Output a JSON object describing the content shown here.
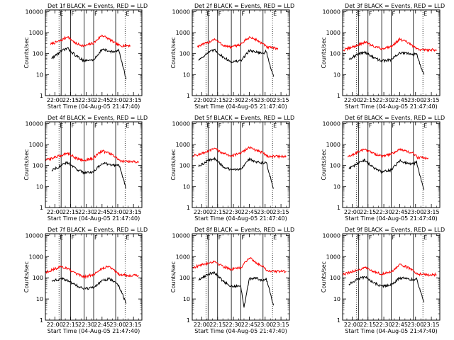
{
  "chart_data": [
    {
      "type": "line",
      "title": "Det 1f BLACK = Events, RED = LLD",
      "xlabel": "Start Time (04-Aug-05 21:47:40)",
      "ylabel": "Counts/sec",
      "yscale": "log",
      "ylim": [
        1,
        12000
      ],
      "xlim": [
        "21:51",
        "23:23"
      ],
      "x_ticks": [
        "22:00",
        "22:15",
        "22:30",
        "22:45",
        "23:00",
        "23:15"
      ],
      "y_ticks": [
        "1",
        "10",
        "100",
        "1000",
        "10000"
      ],
      "event_lines": [
        "22:06",
        "22:15",
        "22:28",
        "22:37",
        "22:58"
      ],
      "dotted_lines": [
        "22:04",
        "23:07"
      ],
      "markers": [
        "E",
        "F",
        "F",
        "E"
      ],
      "series": [
        {
          "color": "#ff0000",
          "x": [
            "21:56",
            "22:06",
            "22:12",
            "22:20",
            "22:28",
            "22:37",
            "22:45",
            "22:52",
            "22:58",
            "23:02",
            "23:10",
            "23:12"
          ],
          "values": [
            280,
            420,
            650,
            300,
            230,
            320,
            750,
            480,
            300,
            240,
            240,
            240
          ]
        },
        {
          "color": "#000000",
          "x": [
            "21:57",
            "22:06",
            "22:12",
            "22:20",
            "22:28",
            "22:37",
            "22:45",
            "22:52",
            "22:58",
            "23:01",
            "23:04",
            "23:08"
          ],
          "values": [
            60,
            130,
            180,
            80,
            45,
            50,
            160,
            130,
            120,
            150,
            40,
            6
          ]
        }
      ]
    },
    {
      "type": "line",
      "title": "Det 2f BLACK = Events, RED = LLD",
      "xlabel": "Start Time (04-Aug-05 21:47:40)",
      "ylabel": "Counts/sec",
      "yscale": "log",
      "ylim": [
        1,
        12000
      ],
      "xlim": [
        "21:51",
        "23:23"
      ],
      "x_ticks": [
        "22:00",
        "22:15",
        "22:30",
        "22:45",
        "23:00",
        "23:15"
      ],
      "y_ticks": [
        "1",
        "10",
        "100",
        "1000",
        "10000"
      ],
      "event_lines": [
        "22:06",
        "22:15",
        "22:28",
        "22:37",
        "22:58"
      ],
      "dotted_lines": [
        "22:04",
        "23:07"
      ],
      "markers": [
        "E",
        "F",
        "F",
        "E"
      ],
      "series": [
        {
          "color": "#ff0000",
          "x": [
            "21:56",
            "22:06",
            "22:12",
            "22:20",
            "22:28",
            "22:37",
            "22:45",
            "22:52",
            "22:58",
            "23:02",
            "23:10",
            "23:12"
          ],
          "values": [
            220,
            330,
            500,
            250,
            200,
            280,
            600,
            450,
            280,
            200,
            180,
            180
          ]
        },
        {
          "color": "#000000",
          "x": [
            "21:57",
            "22:06",
            "22:12",
            "22:20",
            "22:28",
            "22:37",
            "22:45",
            "22:52",
            "22:58",
            "23:01",
            "23:04",
            "23:08"
          ],
          "values": [
            50,
            110,
            150,
            70,
            40,
            45,
            140,
            120,
            100,
            130,
            35,
            8
          ]
        }
      ]
    },
    {
      "type": "line",
      "title": "Det 3f BLACK = Events, RED = LLD",
      "xlabel": "Start Time (04-Aug-05 21:47:40)",
      "ylabel": "Counts/sec",
      "yscale": "log",
      "ylim": [
        1,
        12000
      ],
      "xlim": [
        "21:51",
        "23:23"
      ],
      "x_ticks": [
        "22:00",
        "22:15",
        "22:30",
        "22:45",
        "23:00",
        "23:15"
      ],
      "y_ticks": [
        "1",
        "10",
        "100",
        "1000",
        "10000"
      ],
      "event_lines": [
        "22:06",
        "22:15",
        "22:28",
        "22:37",
        "22:58"
      ],
      "dotted_lines": [
        "22:04",
        "23:07"
      ],
      "markers": [
        "E",
        "F",
        "F",
        "E"
      ],
      "series": [
        {
          "color": "#ff0000",
          "x": [
            "21:51",
            "22:06",
            "22:12",
            "22:20",
            "22:28",
            "22:37",
            "22:45",
            "22:52",
            "22:58",
            "23:02",
            "23:10",
            "23:20"
          ],
          "values": [
            140,
            260,
            350,
            230,
            170,
            220,
            480,
            350,
            220,
            160,
            150,
            150
          ]
        },
        {
          "color": "#000000",
          "x": [
            "21:57",
            "22:06",
            "22:12",
            "22:20",
            "22:28",
            "22:37",
            "22:45",
            "22:52",
            "22:58",
            "23:01",
            "23:04",
            "23:08"
          ],
          "values": [
            55,
            95,
            120,
            65,
            45,
            50,
            110,
            100,
            90,
            110,
            35,
            10
          ]
        }
      ]
    },
    {
      "type": "line",
      "title": "Det 4f BLACK = Events, RED = LLD",
      "xlabel": "Start Time (04-Aug-05 21:47:40)",
      "ylabel": "Counts/sec",
      "yscale": "log",
      "ylim": [
        1,
        12000
      ],
      "xlim": [
        "21:51",
        "23:23"
      ],
      "x_ticks": [
        "22:00",
        "22:15",
        "22:30",
        "22:45",
        "23:00",
        "23:15"
      ],
      "y_ticks": [
        "1",
        "10",
        "100",
        "1000",
        "10000"
      ],
      "event_lines": [
        "22:06",
        "22:15",
        "22:28",
        "22:37",
        "22:58"
      ],
      "dotted_lines": [
        "22:04",
        "23:07"
      ],
      "markers": [
        "E",
        "F",
        "F",
        "E"
      ],
      "series": [
        {
          "color": "#ff0000",
          "x": [
            "21:51",
            "22:06",
            "22:12",
            "22:20",
            "22:28",
            "22:37",
            "22:45",
            "22:52",
            "22:58",
            "23:02",
            "23:10",
            "23:20"
          ],
          "values": [
            180,
            300,
            400,
            230,
            170,
            230,
            500,
            380,
            260,
            160,
            150,
            150
          ]
        },
        {
          "color": "#000000",
          "x": [
            "21:57",
            "22:06",
            "22:12",
            "22:20",
            "22:28",
            "22:37",
            "22:45",
            "22:52",
            "22:58",
            "23:01",
            "23:04",
            "23:08"
          ],
          "values": [
            60,
            100,
            140,
            70,
            45,
            50,
            130,
            110,
            100,
            120,
            35,
            8
          ]
        }
      ]
    },
    {
      "type": "line",
      "title": "Det 5f BLACK = Events, RED = LLD",
      "xlabel": "Start Time (04-Aug-05 21:47:40)",
      "ylabel": "Counts/sec",
      "yscale": "log",
      "ylim": [
        1,
        12000
      ],
      "xlim": [
        "21:51",
        "23:23"
      ],
      "x_ticks": [
        "22:00",
        "22:15",
        "22:30",
        "22:45",
        "23:00",
        "23:15"
      ],
      "y_ticks": [
        "1",
        "10",
        "100",
        "1000",
        "10000"
      ],
      "event_lines": [
        "22:06",
        "22:15",
        "22:28",
        "22:37",
        "22:58"
      ],
      "dotted_lines": [
        "22:04",
        "23:07"
      ],
      "markers": [
        "E",
        "F",
        "F",
        "E"
      ],
      "series": [
        {
          "color": "#ff0000",
          "x": [
            "21:51",
            "22:06",
            "22:12",
            "22:20",
            "22:28",
            "22:37",
            "22:45",
            "22:52",
            "22:58",
            "23:02",
            "23:10",
            "23:20"
          ],
          "values": [
            280,
            450,
            650,
            380,
            290,
            380,
            750,
            500,
            420,
            280,
            270,
            270
          ]
        },
        {
          "color": "#000000",
          "x": [
            "21:57",
            "22:06",
            "22:12",
            "22:20",
            "22:28",
            "22:37",
            "22:45",
            "22:52",
            "22:58",
            "23:01",
            "23:04",
            "23:08"
          ],
          "values": [
            90,
            170,
            220,
            90,
            60,
            70,
            200,
            150,
            130,
            160,
            40,
            8
          ]
        }
      ]
    },
    {
      "type": "line",
      "title": "Det 6f BLACK = Events, RED = LLD",
      "xlabel": "Start Time (04-Aug-05 21:47:40)",
      "ylabel": "Counts/sec",
      "yscale": "log",
      "ylim": [
        1,
        12000
      ],
      "xlim": [
        "21:51",
        "23:23"
      ],
      "x_ticks": [
        "22:00",
        "22:15",
        "22:30",
        "22:45",
        "23:00",
        "23:15"
      ],
      "y_ticks": [
        "1",
        "10",
        "100",
        "1000",
        "10000"
      ],
      "event_lines": [
        "22:06",
        "22:15",
        "22:28",
        "22:37",
        "22:58"
      ],
      "dotted_lines": [
        "22:04",
        "23:07"
      ],
      "markers": [
        "E",
        "F",
        "F",
        "E"
      ],
      "series": [
        {
          "color": "#ff0000",
          "x": [
            "21:56",
            "22:06",
            "22:12",
            "22:20",
            "22:28",
            "22:37",
            "22:45",
            "22:52",
            "22:58",
            "23:02",
            "23:10",
            "23:12"
          ],
          "values": [
            250,
            450,
            600,
            380,
            270,
            350,
            600,
            450,
            380,
            240,
            230,
            230
          ]
        },
        {
          "color": "#000000",
          "x": [
            "21:57",
            "22:06",
            "22:12",
            "22:20",
            "22:28",
            "22:37",
            "22:45",
            "22:52",
            "22:58",
            "23:01",
            "23:04",
            "23:08"
          ],
          "values": [
            70,
            130,
            180,
            80,
            50,
            60,
            170,
            130,
            120,
            150,
            35,
            7
          ]
        }
      ]
    },
    {
      "type": "line",
      "title": "Det 7f BLACK = Events, RED = LLD",
      "xlabel": "Start Time (04-Aug-05 21:47:40)",
      "ylabel": "Counts/sec",
      "yscale": "log",
      "ylim": [
        1,
        12000
      ],
      "xlim": [
        "21:51",
        "23:23"
      ],
      "x_ticks": [
        "22:00",
        "22:15",
        "22:30",
        "22:45",
        "23:00",
        "23:15"
      ],
      "y_ticks": [
        "1",
        "10",
        "100",
        "1000",
        "10000"
      ],
      "event_lines": [
        "22:06",
        "22:15",
        "22:28",
        "22:37",
        "22:58"
      ],
      "dotted_lines": [
        "22:04",
        "23:07"
      ],
      "markers": [
        "E",
        "F",
        "F",
        "E"
      ],
      "series": [
        {
          "color": "#ff0000",
          "x": [
            "21:51",
            "22:06",
            "22:12",
            "22:20",
            "22:28",
            "22:37",
            "22:45",
            "22:52",
            "22:58",
            "23:02",
            "23:10",
            "23:20"
          ],
          "values": [
            180,
            340,
            280,
            150,
            110,
            140,
            280,
            350,
            200,
            140,
            130,
            130
          ]
        },
        {
          "color": "#000000",
          "x": [
            "21:57",
            "22:06",
            "22:12",
            "22:20",
            "22:28",
            "22:37",
            "22:45",
            "22:52",
            "22:58",
            "23:01",
            "23:04",
            "23:08"
          ],
          "values": [
            70,
            90,
            75,
            45,
            30,
            35,
            70,
            90,
            60,
            40,
            20,
            6
          ]
        }
      ]
    },
    {
      "type": "line",
      "title": "Det 8f BLACK = Events, RED = LLD",
      "xlabel": "Start Time (04-Aug-05 21:47:40)",
      "ylabel": "Counts/sec",
      "yscale": "log",
      "ylim": [
        1,
        12000
      ],
      "xlim": [
        "21:51",
        "23:23"
      ],
      "x_ticks": [
        "22:00",
        "22:15",
        "22:30",
        "22:45",
        "23:00",
        "23:15"
      ],
      "y_ticks": [
        "1",
        "10",
        "100",
        "1000",
        "10000"
      ],
      "event_lines": [
        "22:06",
        "22:15",
        "22:28",
        "22:37",
        "22:58"
      ],
      "dotted_lines": [
        "22:04",
        "23:07"
      ],
      "markers": [
        "E",
        "F",
        "F",
        "E"
      ],
      "series": [
        {
          "color": "#ff0000",
          "x": [
            "21:51",
            "22:06",
            "22:12",
            "22:20",
            "22:28",
            "22:37",
            "22:45",
            "22:52",
            "22:58",
            "23:02",
            "23:10",
            "23:20"
          ],
          "values": [
            300,
            500,
            600,
            350,
            250,
            300,
            900,
            500,
            350,
            220,
            200,
            200
          ]
        },
        {
          "color": "#000000",
          "x": [
            "21:57",
            "22:06",
            "22:12",
            "22:20",
            "22:28",
            "22:37",
            "22:40",
            "22:45",
            "22:52",
            "22:58",
            "23:01",
            "23:08"
          ],
          "values": [
            80,
            150,
            180,
            70,
            40,
            40,
            4,
            90,
            100,
            70,
            90,
            5
          ]
        }
      ]
    },
    {
      "type": "line",
      "title": "Det 9f BLACK = Events, RED = LLD",
      "xlabel": "Start Time (04-Aug-05 21:47:40)",
      "ylabel": "Counts/sec",
      "yscale": "log",
      "ylim": [
        1,
        12000
      ],
      "xlim": [
        "21:51",
        "23:23"
      ],
      "x_ticks": [
        "22:00",
        "22:15",
        "22:30",
        "22:45",
        "23:00",
        "23:15"
      ],
      "y_ticks": [
        "1",
        "10",
        "100",
        "1000",
        "10000"
      ],
      "event_lines": [
        "22:06",
        "22:15",
        "22:28",
        "22:37",
        "22:58"
      ],
      "dotted_lines": [
        "22:04",
        "23:07"
      ],
      "markers": [
        "E",
        "F",
        "F",
        "E"
      ],
      "series": [
        {
          "color": "#ff0000",
          "x": [
            "21:51",
            "22:06",
            "22:12",
            "22:20",
            "22:28",
            "22:37",
            "22:45",
            "22:52",
            "22:58",
            "23:02",
            "23:10",
            "23:20"
          ],
          "values": [
            140,
            240,
            300,
            200,
            150,
            190,
            400,
            320,
            220,
            150,
            140,
            140
          ]
        },
        {
          "color": "#000000",
          "x": [
            "21:57",
            "22:06",
            "22:12",
            "22:20",
            "22:28",
            "22:37",
            "22:45",
            "22:52",
            "22:58",
            "23:01",
            "23:04",
            "23:08"
          ],
          "values": [
            50,
            90,
            110,
            60,
            40,
            45,
            100,
            90,
            80,
            90,
            30,
            7
          ]
        }
      ]
    }
  ]
}
